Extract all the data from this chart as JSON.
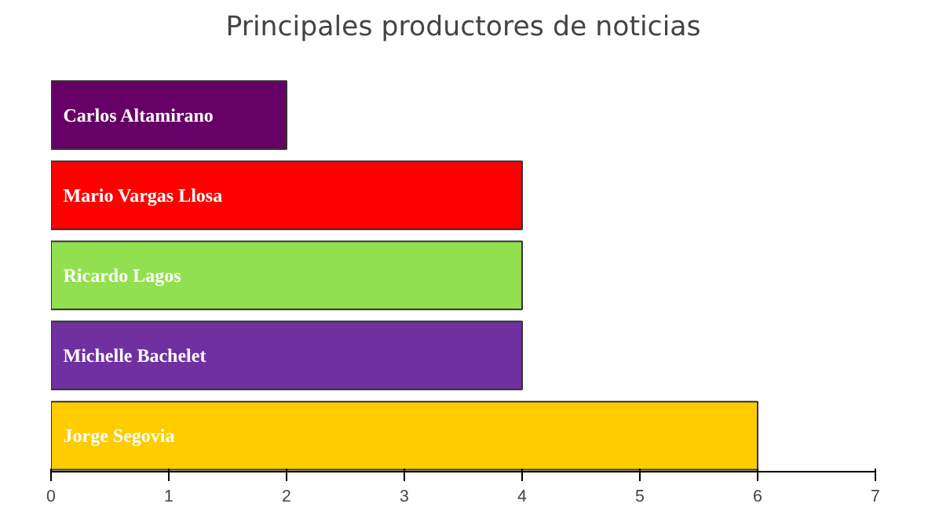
{
  "chart_data": {
    "type": "bar",
    "orientation": "horizontal",
    "title": "Principales productores de noticias",
    "categories": [
      "Carlos Altamirano",
      "Mario Vargas Llosa",
      "Ricardo Lagos",
      "Michelle Bachelet",
      "Jorge Segovia"
    ],
    "values": [
      2,
      4,
      4,
      4,
      6
    ],
    "colors": [
      "#660066",
      "#ff0000",
      "#92e050",
      "#7030a0",
      "#ffcc00"
    ],
    "xlim": [
      0,
      7
    ],
    "xticks": [
      0,
      1,
      2,
      3,
      4,
      5,
      6,
      7
    ],
    "grid": false
  }
}
